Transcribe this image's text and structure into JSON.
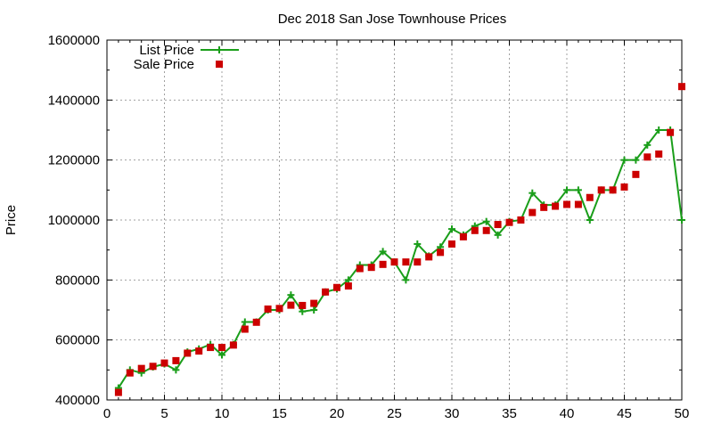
{
  "chart_data": {
    "type": "line",
    "title": "Dec 2018 San Jose Townhouse Prices",
    "xlabel": "",
    "ylabel": "Price",
    "xlim": [
      0,
      50
    ],
    "ylim": [
      400000,
      1600000
    ],
    "x_ticks": [
      0,
      5,
      10,
      15,
      20,
      25,
      30,
      35,
      40,
      45,
      50
    ],
    "y_ticks": [
      400000,
      600000,
      800000,
      1000000,
      1200000,
      1400000,
      1600000
    ],
    "grid": true,
    "legend_position": "top-left",
    "series": [
      {
        "name": "List Price",
        "style": "line-with-plus-markers",
        "color": "#1a9e1a",
        "x": [
          1,
          2,
          3,
          4,
          5,
          6,
          7,
          8,
          9,
          10,
          11,
          12,
          13,
          14,
          15,
          16,
          17,
          18,
          19,
          20,
          21,
          22,
          23,
          24,
          25,
          26,
          27,
          28,
          29,
          30,
          31,
          32,
          33,
          34,
          35,
          36,
          37,
          38,
          39,
          40,
          41,
          42,
          43,
          44,
          45,
          46,
          47,
          48,
          49,
          50
        ],
        "values": [
          440000,
          500000,
          490000,
          510000,
          520000,
          500000,
          560000,
          570000,
          585000,
          550000,
          585000,
          660000,
          660000,
          700000,
          700000,
          750000,
          695000,
          700000,
          760000,
          770000,
          800000,
          850000,
          850000,
          895000,
          860000,
          800000,
          920000,
          880000,
          910000,
          970000,
          950000,
          980000,
          995000,
          950000,
          995000,
          1000000,
          1090000,
          1050000,
          1050000,
          1100000,
          1100000,
          1000000,
          1100000,
          1100000,
          1200000,
          1200000,
          1250000,
          1300000,
          1300000,
          1000000
        ]
      },
      {
        "name": "Sale Price",
        "style": "square-markers",
        "color": "#cc0000",
        "x": [
          1,
          2,
          3,
          4,
          5,
          6,
          7,
          8,
          9,
          10,
          11,
          12,
          13,
          14,
          15,
          16,
          17,
          18,
          19,
          20,
          21,
          22,
          23,
          24,
          25,
          26,
          27,
          28,
          29,
          30,
          31,
          32,
          33,
          34,
          35,
          36,
          37,
          38,
          39,
          40,
          41,
          42,
          43,
          44,
          45,
          46,
          47,
          48,
          49,
          50
        ],
        "values": [
          425000,
          490000,
          505000,
          512000,
          523000,
          531000,
          556000,
          563000,
          575000,
          575000,
          583000,
          636000,
          659000,
          703000,
          705000,
          716000,
          715000,
          722000,
          760000,
          775000,
          780000,
          838000,
          842000,
          852000,
          860000,
          860000,
          860000,
          877000,
          892000,
          920000,
          944000,
          965000,
          965000,
          985000,
          992000,
          1000000,
          1025000,
          1042000,
          1046000,
          1052000,
          1052000,
          1075000,
          1100000,
          1100000,
          1110000,
          1152000,
          1210000,
          1220000,
          1292000,
          1445000
        ]
      }
    ]
  }
}
